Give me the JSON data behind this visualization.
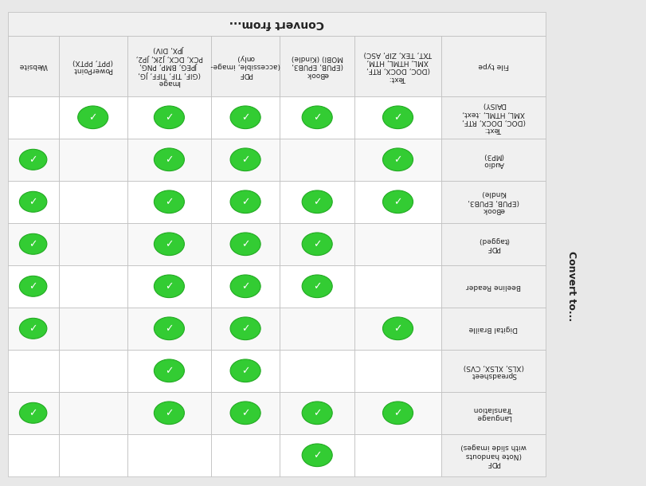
{
  "title": "Convert from...",
  "convert_to_label": "Convert to...",
  "col_headers_display": [
    "Website",
    "PowerPoint\n(PPT, PPTX)",
    "Image\n(GIF, TIF, TIFF, JG,\nJPEG, BMP, PNG,\nPCX, DCX, J2K, JP2,\nJPX, DIV)",
    "PDF\n(accessible, image-\nonly)",
    "eBook\n(EPUB, EPUB3,\nMOBI) (Kindle)",
    "Text:\n(DOC, DOCX, RTF,\nXML, HTML, HTM,\nTXT, TEX, ZIP, ASC)",
    "File type"
  ],
  "row_headers_display": [
    "Text:\n(DOC, DOCX, RTF,\nXML, HTML, .text,\nDAISY)",
    "Audio\n(MP3)",
    "eBook\n(EPUB, EPUB3,\nKindle)",
    "PDF\n(tagged)",
    "Beeline Reader",
    "Digital Braille",
    "Spreadsheet\n(XLS, XLSX, CVS)",
    "Language\nTranslation",
    "PDF\n(Note handouts\nwith slide images)"
  ],
  "checkmarks": [
    [
      0,
      1,
      1,
      1,
      1,
      1
    ],
    [
      1,
      0,
      1,
      1,
      0,
      1
    ],
    [
      1,
      0,
      1,
      1,
      1,
      1
    ],
    [
      1,
      0,
      1,
      1,
      1,
      0
    ],
    [
      1,
      0,
      1,
      1,
      1,
      0
    ],
    [
      1,
      0,
      1,
      1,
      0,
      1
    ],
    [
      0,
      0,
      1,
      1,
      0,
      0
    ],
    [
      1,
      0,
      1,
      1,
      1,
      1
    ],
    [
      0,
      0,
      0,
      0,
      1,
      0
    ]
  ],
  "check_color": "#33cc33",
  "check_dark": "#22aa22",
  "header_bg": "#f0f0f0",
  "cell_bg_even": "#ffffff",
  "cell_bg_odd": "#f8f8f8",
  "border_color": "#bbbbbb",
  "text_color": "#222222",
  "outer_bg": "#e8e8e8",
  "title_fontsize": 10,
  "header_fontsize": 6.5,
  "row_header_fontsize": 6.5,
  "convert_to_fontsize": 9
}
